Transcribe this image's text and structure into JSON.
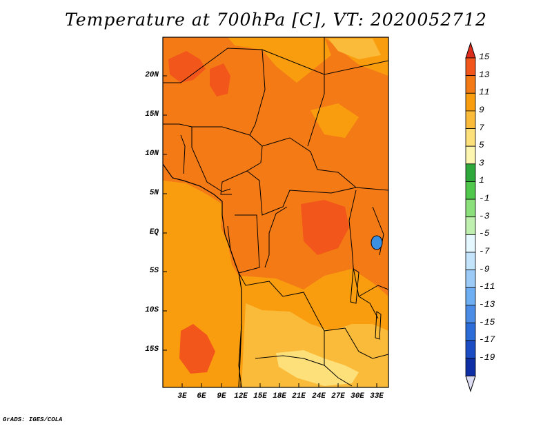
{
  "title": "Temperature at 700hPa [C], VT: 2020052712",
  "credit": "GrADS: IGES/COLA",
  "lat_ticks": [
    "20N",
    "15N",
    "10N",
    "5N",
    "EQ",
    "5S",
    "10S",
    "15S"
  ],
  "lon_ticks": [
    "3E",
    "6E",
    "9E",
    "12E",
    "15E",
    "18E",
    "21E",
    "24E",
    "27E",
    "30E",
    "33E"
  ],
  "colorbar": {
    "labels": [
      "15",
      "13",
      "11",
      "9",
      "7",
      "5",
      "3",
      "1",
      "-1",
      "-3",
      "-5",
      "-7",
      "-9",
      "-11",
      "-13",
      "-15",
      "-17",
      "-19"
    ],
    "colors": [
      "#e8321c",
      "#f2561a",
      "#f47a16",
      "#f99d0f",
      "#fbbb3a",
      "#fde07a",
      "#fcf6b1",
      "#2ea83a",
      "#50c84c",
      "#8ce07c",
      "#c0f0b0",
      "#e6f8ff",
      "#c4e4fc",
      "#9ccbf8",
      "#6eaef2",
      "#4a8ce6",
      "#2c6cd8",
      "#1c4cc4",
      "#0e2ea6",
      "#0a1070",
      "#dcdcf2"
    ],
    "over_color": "#dc2c1c",
    "under_color": "#dcdcf2"
  },
  "map": {
    "base_color": "#f47a16",
    "hot_color": "#f2561a",
    "warm_color": "#f99d0f",
    "mild_color": "#fbbb3a",
    "cool_color": "#fde07a"
  }
}
